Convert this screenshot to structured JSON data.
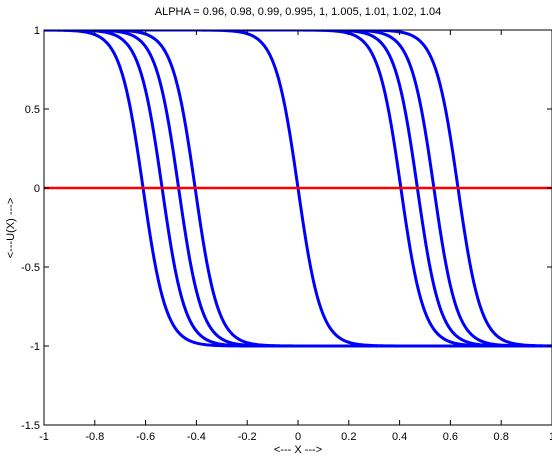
{
  "chart_data": {
    "type": "line",
    "title": "ALPHA = 0.96, 0.98, 0.99, 0.995, 1, 1.005, 1.01, 1.02, 1.04",
    "xlabel": "<--- X --->",
    "ylabel": "<---U(X) --->",
    "xlim": [
      -1,
      1
    ],
    "ylim": [
      -1.5,
      1
    ],
    "xticks": [
      -1,
      -0.8,
      -0.6,
      -0.4,
      -0.2,
      0,
      0.2,
      0.4,
      0.6,
      0.8,
      1
    ],
    "xtick_labels": [
      "-1",
      "-0.8",
      "-0.6",
      "-0.4",
      "-0.2",
      "0",
      "0.2",
      "0.4",
      "0.6",
      "0.8",
      "1"
    ],
    "yticks": [
      -1.5,
      -1,
      -0.5,
      0,
      0.5,
      1
    ],
    "ytick_labels": [
      "-1.5",
      "-1",
      "-0.5",
      "0",
      "0.5",
      "1"
    ],
    "grid": false,
    "legend": "none",
    "colors": {
      "curves": "#0000ff",
      "zero_line": "#ff0000"
    },
    "curve_shape": "u(x) = -tanh((x - x0) / w), transition from +1 to -1",
    "curve_width": 0.09,
    "curve_crossings_x0": [
      -0.61,
      -0.535,
      -0.47,
      -0.405,
      0.0,
      0.405,
      0.47,
      0.535,
      0.63
    ],
    "reference_line": {
      "y": 0,
      "x": [
        -1,
        1
      ]
    }
  }
}
